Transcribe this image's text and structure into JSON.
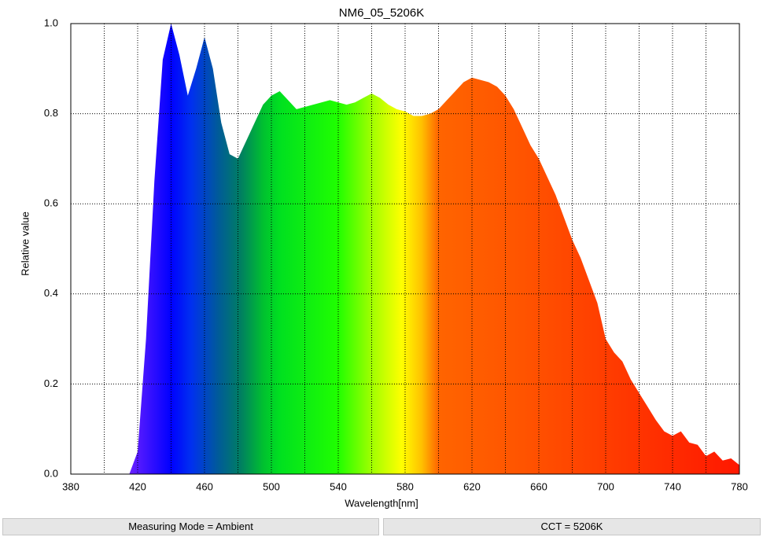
{
  "chart_data": {
    "type": "area",
    "title": "NM6_05_5206K",
    "x_label": "Wavelength[nm]",
    "y_label": "Relative value",
    "x": [
      380,
      385,
      390,
      395,
      400,
      405,
      410,
      415,
      420,
      425,
      430,
      435,
      440,
      445,
      450,
      455,
      460,
      465,
      470,
      475,
      480,
      485,
      490,
      495,
      500,
      505,
      510,
      515,
      520,
      525,
      530,
      535,
      540,
      545,
      550,
      555,
      560,
      565,
      570,
      575,
      580,
      585,
      590,
      595,
      600,
      605,
      610,
      615,
      620,
      625,
      630,
      635,
      640,
      645,
      650,
      655,
      660,
      665,
      670,
      675,
      680,
      685,
      690,
      695,
      700,
      705,
      710,
      715,
      720,
      725,
      730,
      735,
      740,
      745,
      750,
      755,
      760,
      765,
      770,
      775,
      780
    ],
    "values": [
      0,
      0,
      0,
      0,
      0,
      0,
      0,
      0,
      0.05,
      0.3,
      0.65,
      0.92,
      1.0,
      0.93,
      0.84,
      0.9,
      0.97,
      0.9,
      0.78,
      0.71,
      0.7,
      0.74,
      0.78,
      0.82,
      0.84,
      0.85,
      0.83,
      0.81,
      0.815,
      0.82,
      0.825,
      0.83,
      0.825,
      0.82,
      0.825,
      0.835,
      0.845,
      0.835,
      0.82,
      0.81,
      0.805,
      0.795,
      0.795,
      0.8,
      0.81,
      0.83,
      0.85,
      0.87,
      0.88,
      0.875,
      0.87,
      0.86,
      0.84,
      0.81,
      0.77,
      0.73,
      0.7,
      0.66,
      0.62,
      0.57,
      0.52,
      0.48,
      0.43,
      0.38,
      0.3,
      0.27,
      0.25,
      0.21,
      0.18,
      0.15,
      0.12,
      0.095,
      0.085,
      0.095,
      0.07,
      0.065,
      0.04,
      0.05,
      0.03,
      0.035,
      0.02
    ],
    "color_stops": [
      {
        "x": 415,
        "color": "#6a20ff"
      },
      {
        "x": 440,
        "color": "#0000ff"
      },
      {
        "x": 452,
        "color": "#0030f0"
      },
      {
        "x": 468,
        "color": "#005a9a"
      },
      {
        "x": 482,
        "color": "#008060"
      },
      {
        "x": 495,
        "color": "#00c030"
      },
      {
        "x": 505,
        "color": "#00e020"
      },
      {
        "x": 540,
        "color": "#20ff00"
      },
      {
        "x": 560,
        "color": "#a0ff00"
      },
      {
        "x": 578,
        "color": "#ffff00"
      },
      {
        "x": 590,
        "color": "#ffc000"
      },
      {
        "x": 600,
        "color": "#ff6400"
      },
      {
        "x": 650,
        "color": "#ff5400"
      },
      {
        "x": 780,
        "color": "#ff1800"
      }
    ],
    "xlim": [
      380,
      780
    ],
    "ylim": [
      0,
      1
    ],
    "xticks": [
      380,
      420,
      460,
      500,
      540,
      580,
      620,
      660,
      700,
      740,
      780
    ],
    "xminorticks": [
      400,
      440,
      480,
      520,
      560,
      600,
      640,
      680,
      720,
      760
    ],
    "yticks": [
      {
        "value": 0,
        "label": "0.0"
      },
      0.2,
      0.4,
      0.6,
      0.8,
      {
        "value": 1,
        "label": "1.0"
      }
    ],
    "grid": true
  },
  "status_bar": [
    "Measuring Mode = Ambient",
    "CCT = 5206K"
  ]
}
